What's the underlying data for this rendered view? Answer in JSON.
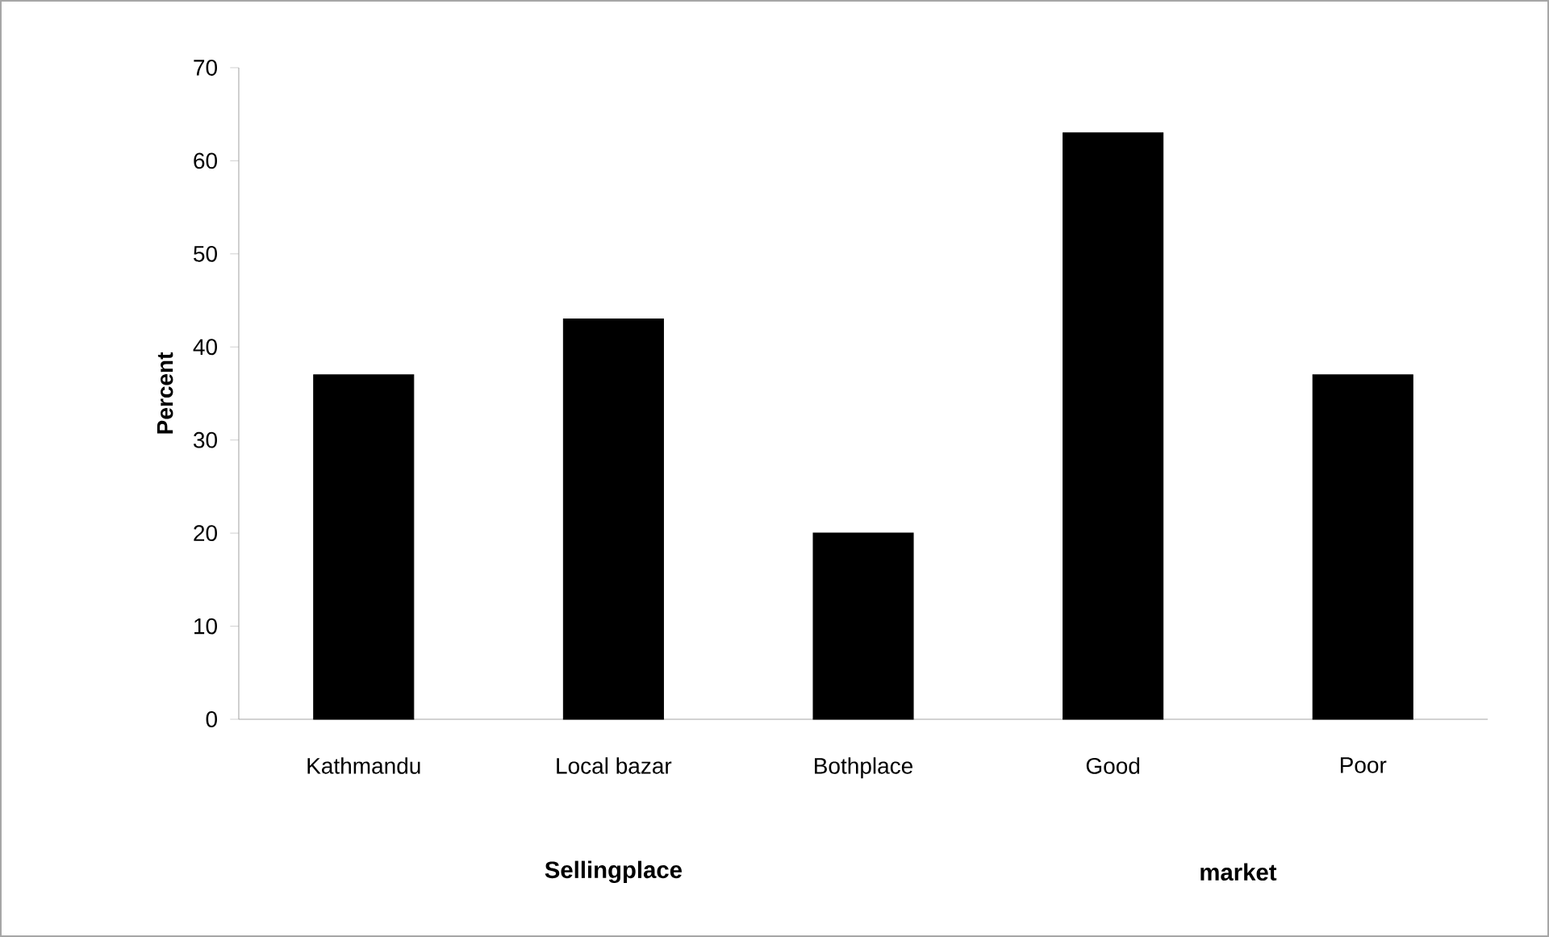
{
  "chart_data": {
    "type": "bar",
    "categories": [
      "Kathmandu",
      "Local bazar",
      "Bothplace",
      "Good",
      "Poor"
    ],
    "values": [
      37,
      43,
      20,
      63,
      37
    ],
    "color": "#000000",
    "ylabel": "Percent",
    "ylim": [
      0,
      70
    ],
    "yticks": [
      0,
      10,
      20,
      30,
      40,
      50,
      60,
      70
    ],
    "annotations": [
      "Sellingplace",
      "market"
    ]
  }
}
